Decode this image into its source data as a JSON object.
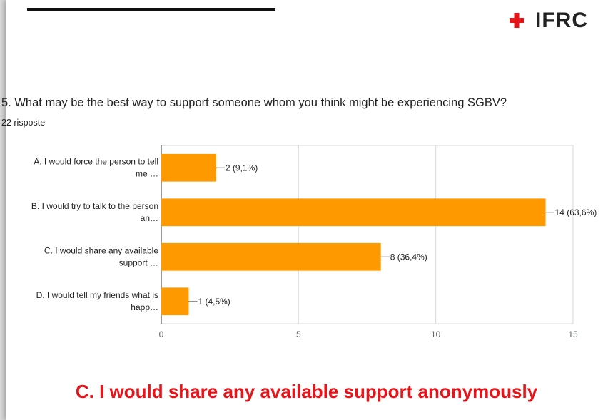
{
  "header": {
    "logo_text": "IFRC",
    "logo_color": "#e8141a"
  },
  "question": {
    "text": "5. What may be the best way to support someone whom you think might be experiencing SGBV?",
    "responses": "22 risposte"
  },
  "chart_data": {
    "type": "bar",
    "orientation": "horizontal",
    "categories": [
      [
        "A. I would force the person to tell",
        "me …"
      ],
      [
        "B. I would try to talk to the person",
        "an…"
      ],
      [
        "C. I would share any available",
        "support …"
      ],
      [
        "D. I would tell my friends what is",
        "happ…"
      ]
    ],
    "values": [
      2,
      14,
      8,
      1
    ],
    "data_labels": [
      "2 (9,1%)",
      "14 (63,6%)",
      "8 (36,4%)",
      "1 (4,5%)"
    ],
    "x_ticks": [
      0,
      5,
      10,
      15
    ],
    "xlim": [
      0,
      15
    ],
    "bar_color": "#ff9900",
    "grid": true
  },
  "answer": {
    "text": "C. I would share any available support anonymously",
    "color": "#e8141a"
  }
}
